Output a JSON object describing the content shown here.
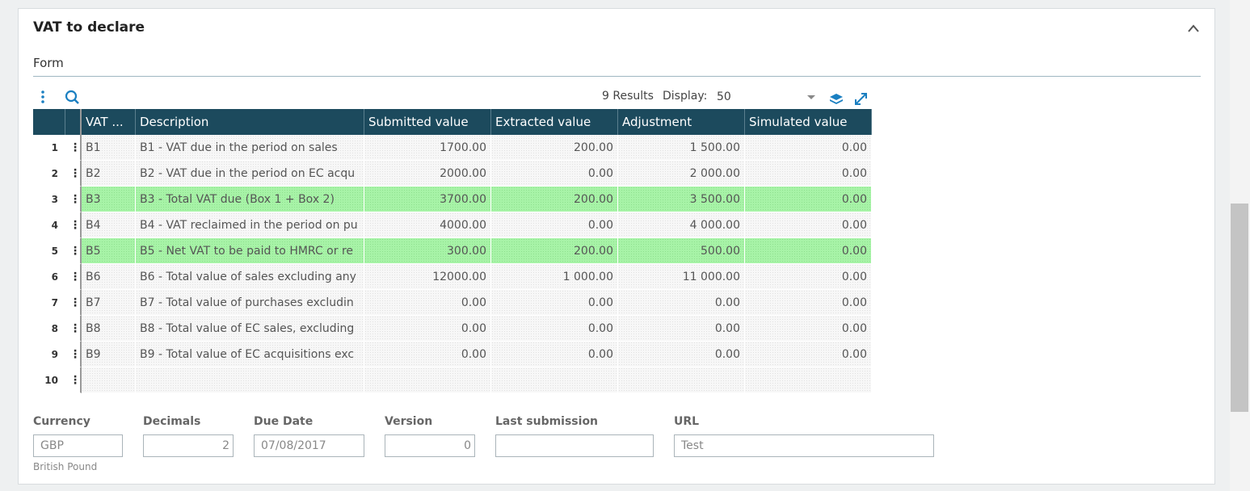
{
  "panel": {
    "title": "VAT to declare",
    "section": "Form"
  },
  "toolbar": {
    "results": "9 Results",
    "display_label": "Display:",
    "display_value": "50"
  },
  "table": {
    "columns": [
      "VAT ...",
      "Description",
      "Submitted value",
      "Extracted value",
      "Adjustment",
      "Simulated value"
    ],
    "rows": [
      {
        "num": "1",
        "highlight": false,
        "cells": [
          "B1",
          "B1 - VAT due in the period on sales",
          "1700.00",
          "200.00",
          "1 500.00",
          "0.00"
        ]
      },
      {
        "num": "2",
        "highlight": false,
        "cells": [
          "B2",
          "B2 - VAT due in the period on EC acqu",
          "2000.00",
          "0.00",
          "2 000.00",
          "0.00"
        ]
      },
      {
        "num": "3",
        "highlight": true,
        "cells": [
          "B3",
          "B3 - Total VAT due (Box 1 + Box 2)",
          "3700.00",
          "200.00",
          "3 500.00",
          "0.00"
        ]
      },
      {
        "num": "4",
        "highlight": false,
        "cells": [
          "B4",
          "B4 - VAT reclaimed in the period on pu",
          "4000.00",
          "0.00",
          "4 000.00",
          "0.00"
        ]
      },
      {
        "num": "5",
        "highlight": true,
        "cells": [
          "B5",
          "B5 - Net VAT to be paid to HMRC or re",
          "300.00",
          "200.00",
          "500.00",
          "0.00"
        ]
      },
      {
        "num": "6",
        "highlight": false,
        "cells": [
          "B6",
          "B6 - Total value of sales excluding any",
          "12000.00",
          "1 000.00",
          "11 000.00",
          "0.00"
        ]
      },
      {
        "num": "7",
        "highlight": false,
        "cells": [
          "B7",
          "B7 - Total value of purchases excludin",
          "0.00",
          "0.00",
          "0.00",
          "0.00"
        ]
      },
      {
        "num": "8",
        "highlight": false,
        "cells": [
          "B8",
          "B8 - Total value of EC sales, excluding",
          "0.00",
          "0.00",
          "0.00",
          "0.00"
        ]
      },
      {
        "num": "9",
        "highlight": false,
        "cells": [
          "B9",
          "B9 - Total value of EC acquisitions exc",
          "0.00",
          "0.00",
          "0.00",
          "0.00"
        ]
      },
      {
        "num": "10",
        "highlight": false,
        "cells": []
      }
    ]
  },
  "fields": [
    {
      "label": "Currency",
      "value": "GBP",
      "hint": "British Pound"
    },
    {
      "label": "Decimals",
      "value": "2"
    },
    {
      "label": "Due Date",
      "value": "07/08/2017"
    },
    {
      "label": "Version",
      "value": "0"
    },
    {
      "label": "Last submission"
    },
    {
      "label": "URL",
      "value": "Test"
    }
  ]
}
